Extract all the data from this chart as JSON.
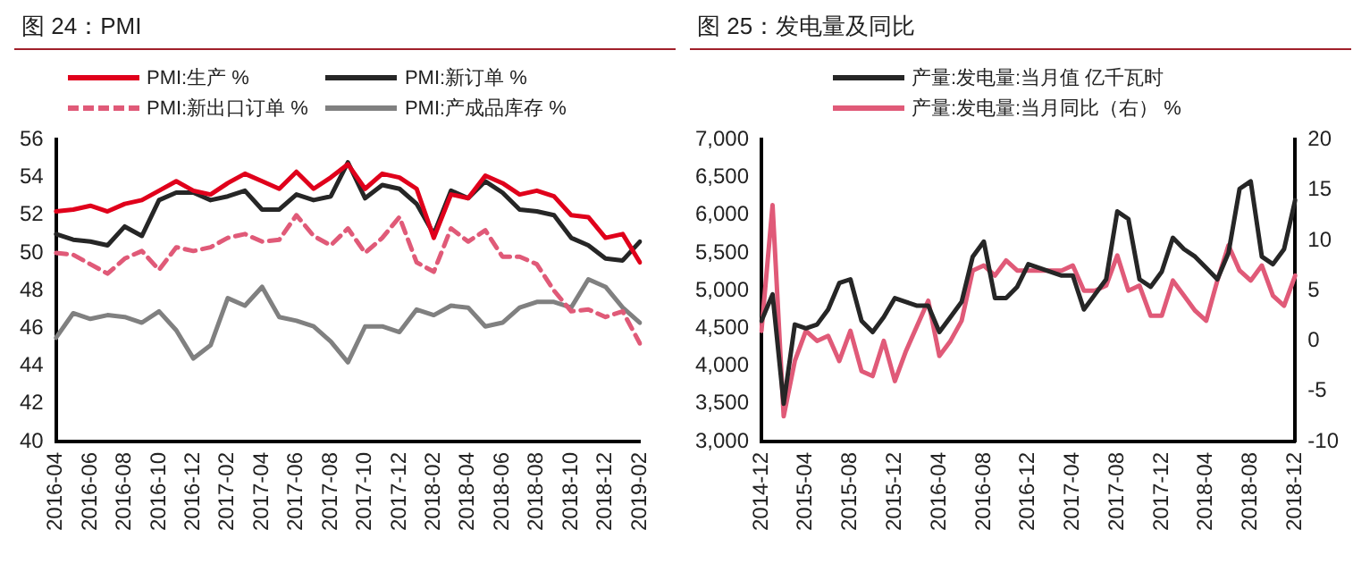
{
  "chart_data": [
    {
      "type": "line",
      "title": "图 24：PMI",
      "legend": "top",
      "grid": false,
      "marker": "none",
      "categories": [
        "2016-04",
        null,
        "2016-06",
        null,
        "2016-08",
        null,
        "2016-10",
        null,
        "2016-12",
        null,
        "2017-02",
        null,
        "2017-04",
        null,
        "2017-06",
        null,
        "2017-08",
        null,
        "2017-10",
        null,
        "2017-12",
        null,
        "2018-02",
        null,
        "2018-04",
        null,
        "2018-06",
        null,
        "2018-08",
        null,
        "2018-10",
        null,
        "2018-12",
        null,
        "2019-02"
      ],
      "ylim": [
        40,
        56
      ],
      "yticks": [
        40,
        42,
        44,
        46,
        48,
        50,
        52,
        54,
        56
      ],
      "series": [
        {
          "name": "PMI:生产 %",
          "color": "#e0001b",
          "line_style": "solid",
          "values": [
            52.2,
            52.3,
            52.5,
            52.2,
            52.6,
            52.8,
            53.3,
            53.8,
            53.3,
            53.1,
            53.7,
            54.2,
            53.8,
            53.4,
            54.3,
            53.4,
            54.0,
            54.7,
            53.4,
            54.2,
            54.0,
            53.4,
            50.8,
            53.1,
            52.9,
            54.1,
            53.7,
            53.1,
            53.3,
            53.0,
            52.0,
            51.9,
            50.8,
            51.0,
            49.5
          ]
        },
        {
          "name": "PMI:新订单 %",
          "color": "#262626",
          "line_style": "solid",
          "values": [
            51.0,
            50.7,
            50.6,
            50.4,
            51.4,
            50.9,
            52.8,
            53.2,
            53.2,
            52.8,
            53.0,
            53.3,
            52.3,
            52.3,
            53.1,
            52.8,
            53.0,
            54.8,
            52.9,
            53.6,
            53.4,
            52.6,
            51.0,
            53.3,
            52.9,
            53.8,
            53.2,
            52.3,
            52.2,
            52.0,
            50.8,
            50.4,
            49.7,
            49.6,
            50.6
          ]
        },
        {
          "name": "PMI:新出口订单 %",
          "color": "#e05a78",
          "line_style": "dashed",
          "values": [
            50.0,
            49.9,
            49.4,
            48.9,
            49.7,
            50.1,
            49.1,
            50.3,
            50.1,
            50.3,
            50.8,
            51.0,
            50.6,
            50.7,
            52.0,
            50.9,
            50.4,
            51.3,
            50.0,
            50.8,
            51.9,
            49.5,
            49.0,
            51.3,
            50.6,
            51.2,
            49.8,
            49.8,
            49.4,
            48.0,
            46.9,
            47.0,
            46.6,
            46.9,
            45.2
          ]
        },
        {
          "name": "PMI:产成品库存 %",
          "color": "#808080",
          "line_style": "solid",
          "values": [
            45.5,
            46.8,
            46.5,
            46.7,
            46.6,
            46.3,
            46.9,
            45.9,
            44.4,
            45.1,
            47.6,
            47.2,
            48.2,
            46.6,
            46.4,
            46.1,
            45.3,
            44.2,
            46.1,
            46.1,
            45.8,
            47.0,
            46.7,
            47.2,
            47.1,
            46.1,
            46.3,
            47.1,
            47.4,
            47.4,
            47.1,
            48.6,
            48.2,
            47.1,
            46.3
          ]
        }
      ]
    },
    {
      "type": "line",
      "title": "图 25：发电量及同比",
      "legend": "top",
      "grid": false,
      "marker": "none",
      "categories": [
        "2014-12",
        null,
        null,
        null,
        "2015-04",
        null,
        null,
        null,
        "2015-08",
        null,
        null,
        null,
        "2015-12",
        null,
        null,
        null,
        "2016-04",
        null,
        null,
        null,
        "2016-08",
        null,
        null,
        null,
        "2016-12",
        null,
        null,
        null,
        "2017-04",
        null,
        null,
        null,
        "2017-08",
        null,
        null,
        null,
        "2017-12",
        null,
        null,
        null,
        "2018-04",
        null,
        null,
        null,
        "2018-08",
        null,
        null,
        null,
        "2018-12"
      ],
      "ylim": [
        3000,
        7000
      ],
      "yticks": [
        {
          "value": 3000,
          "label": "3,000"
        },
        {
          "value": 3500,
          "label": "3,500"
        },
        {
          "value": 4000,
          "label": "4,000"
        },
        {
          "value": 4500,
          "label": "4,500"
        },
        {
          "value": 5000,
          "label": "5,000"
        },
        {
          "value": 5500,
          "label": "5,500"
        },
        {
          "value": 6000,
          "label": "6,000"
        },
        {
          "value": 6500,
          "label": "6,500"
        },
        {
          "value": 7000,
          "label": "7,000"
        }
      ],
      "y2lim": [
        -10,
        20
      ],
      "y2ticks": [
        -10,
        -5,
        0,
        5,
        10,
        15,
        20
      ],
      "series": [
        {
          "name": "产量:发电量:当月值 亿千瓦时",
          "color": "#262626",
          "line_style": "solid",
          "values": [
            4600,
            4950,
            3500,
            4550,
            4500,
            4550,
            4750,
            5100,
            5150,
            4600,
            4450,
            4650,
            4900,
            4850,
            4800,
            4800,
            4450,
            4650,
            4850,
            5450,
            5650,
            4900,
            4900,
            5050,
            5350,
            5300,
            5250,
            5200,
            5200,
            4750,
            4950,
            5150,
            6050,
            5950,
            5150,
            5050,
            5250,
            5700,
            5550,
            5450,
            5300,
            5150,
            5500,
            6350,
            6450,
            5450,
            5350,
            5550,
            6200
          ]
        },
        {
          "name": "产量:发电量:当月同比（右） %",
          "color": "#e05a78",
          "line_style": "solid",
          "axis": "y2",
          "values": [
            1,
            13.5,
            -7.5,
            -2,
            1,
            0,
            0.5,
            -2,
            1,
            -3,
            -3.5,
            0,
            -4,
            -1,
            1.5,
            4,
            -1.5,
            0,
            2,
            7,
            7.5,
            6.5,
            8,
            7,
            7,
            7,
            7,
            7,
            7.5,
            5,
            5,
            5.5,
            8.5,
            5,
            5.5,
            2.5,
            2.5,
            6,
            4.5,
            3,
            2,
            6,
            9.5,
            7,
            6,
            7.5,
            4.5,
            3.5,
            6.5
          ]
        }
      ]
    }
  ]
}
